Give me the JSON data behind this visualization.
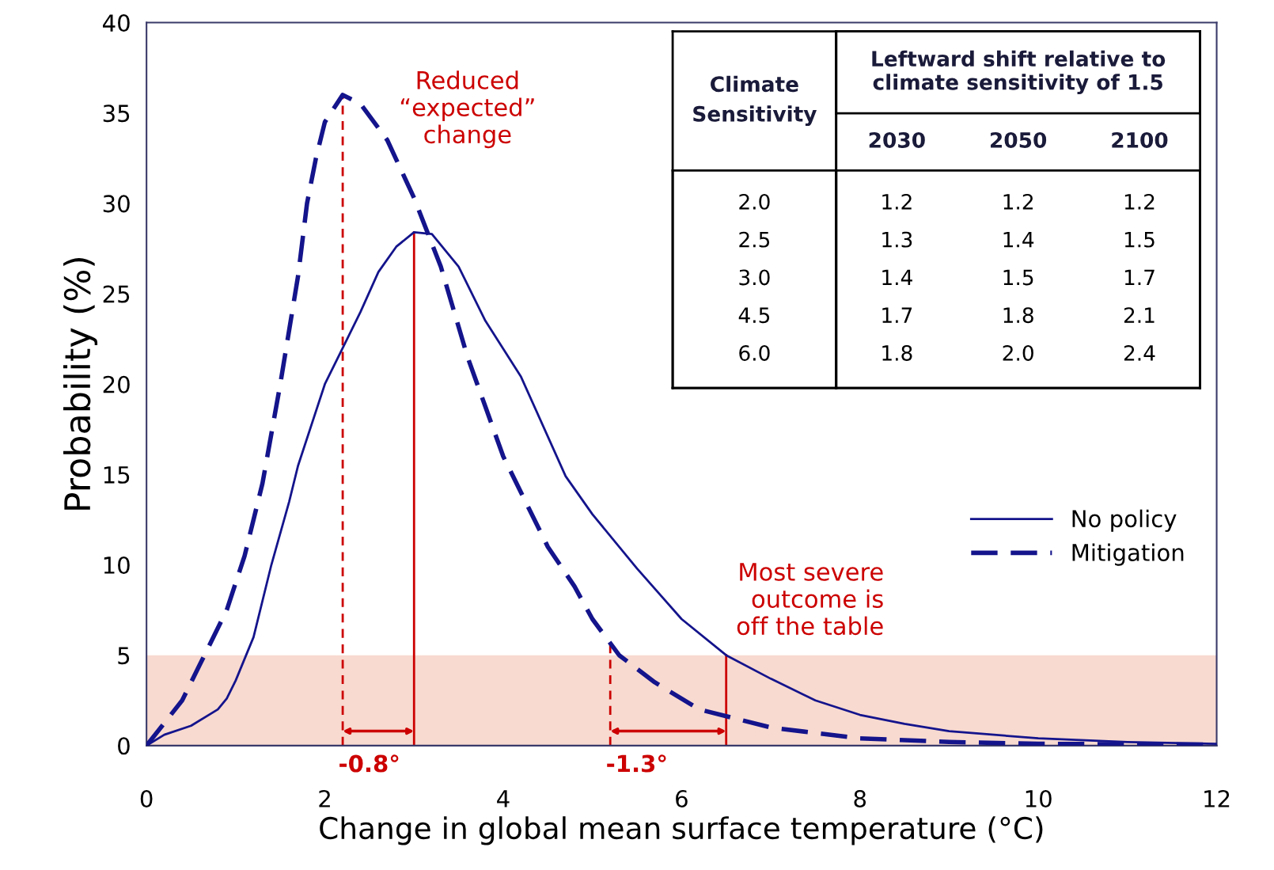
{
  "chart_data": [
    {
      "type": "line",
      "xlabel": "Change in global mean surface temperature (°C)",
      "ylabel": "Probability (%)",
      "xlim": [
        0,
        12
      ],
      "ylim": [
        0,
        40
      ],
      "xticks": [
        0,
        2,
        4,
        6,
        8,
        10,
        12
      ],
      "yticks": [
        0,
        5,
        10,
        15,
        20,
        25,
        30,
        35,
        40
      ],
      "grid": false,
      "legend": "right",
      "marker": "none",
      "series": [
        {
          "name": "No policy",
          "color": "#14148c",
          "line_style": "solid",
          "x": [
            0,
            0.2,
            0.5,
            0.8,
            0.9,
            1.0,
            1.2,
            1.4,
            1.6,
            1.7,
            2.0,
            2.2,
            2.4,
            2.6,
            2.8,
            3.0,
            3.2,
            3.5,
            3.8,
            4.2,
            4.7,
            5.0,
            5.5,
            6.0,
            6.5,
            7.0,
            7.5,
            8.0,
            8.5,
            9.0,
            10,
            11,
            12
          ],
          "values": [
            0,
            0.6,
            1.1,
            2.0,
            2.6,
            3.6,
            6.0,
            10,
            13.5,
            15.5,
            20,
            22,
            24,
            26.2,
            27.6,
            28.4,
            28.3,
            26.5,
            23.5,
            20.4,
            14.9,
            12.8,
            9.8,
            7.0,
            5.0,
            3.7,
            2.5,
            1.7,
            1.2,
            0.8,
            0.4,
            0.2,
            0.1
          ]
        },
        {
          "name": "Mitigation",
          "color": "#14148c",
          "line_style": "dashed",
          "x": [
            0,
            0.4,
            0.6,
            0.9,
            1.1,
            1.3,
            1.5,
            1.7,
            1.8,
            1.9,
            2.0,
            2.2,
            2.4,
            2.7,
            3.0,
            3.3,
            3.6,
            4.0,
            4.5,
            4.8,
            5.0,
            5.3,
            5.7,
            6.2,
            7.0,
            8.0,
            9.0,
            10,
            12
          ],
          "values": [
            0,
            2.5,
            4.5,
            7.5,
            10.5,
            14.5,
            20,
            26,
            30,
            32.5,
            34.5,
            36,
            35.5,
            33.5,
            30.3,
            26.5,
            21.5,
            16,
            11,
            8.8,
            7.0,
            5.0,
            3.5,
            2.0,
            1.0,
            0.4,
            0.2,
            0.1,
            0.05
          ]
        }
      ],
      "bands": [
        {
          "axis": "y",
          "from": 0,
          "to": 5,
          "color": "#f8dad0"
        }
      ],
      "ref_lines": [
        {
          "axis": "x",
          "value": 2.2,
          "color": "#cc0000",
          "line_style": "dashed"
        },
        {
          "axis": "x",
          "value": 3.0,
          "color": "#cc0000",
          "line_style": "solid"
        },
        {
          "axis": "x",
          "value": 5.2,
          "color": "#cc0000",
          "line_style": "dashed"
        },
        {
          "axis": "x",
          "value": 6.5,
          "color": "#cc0000",
          "line_style": "solid"
        }
      ],
      "annotations": [
        {
          "text": "-0.8°",
          "x": 3.0,
          "y": 0.8
        },
        {
          "text": "-1.3°",
          "x": 6.5,
          "y": 0.8
        },
        "Reduced\n“expected”\nchange",
        "Most severe\noutcome is\noff the table"
      ]
    },
    {
      "type": "other",
      "title": "Leftward shift relative to\nclimate sensitivity of 1.5",
      "ylabel": "Climate\nSensitivity",
      "categories": [
        "2030",
        "2050",
        "2100"
      ],
      "y_categories": [
        "2.0",
        "2.5",
        "3.0",
        "4.5",
        "6.0"
      ],
      "cell_labels": [
        [
          "1.2",
          "1.2",
          "1.2"
        ],
        [
          "1.3",
          "1.4",
          "1.5"
        ],
        [
          "1.4",
          "1.5",
          "1.7"
        ],
        [
          "1.7",
          "1.8",
          "2.1"
        ],
        [
          "1.8",
          "2.0",
          "2.4"
        ]
      ]
    }
  ]
}
